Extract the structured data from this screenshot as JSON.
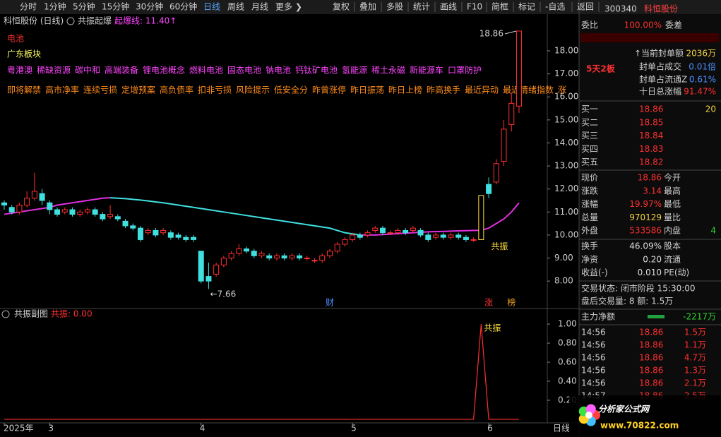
{
  "toolbar": {
    "periods": [
      "分时",
      "1分钟",
      "5分钟",
      "15分钟",
      "30分钟",
      "60分钟",
      "日线",
      "周线",
      "月线",
      "更多 ❯"
    ],
    "selected_period": 6,
    "tools": [
      "复权",
      "叠加",
      "多股",
      "统计",
      "画线",
      "F10",
      "简框",
      "标记",
      "-自选",
      "返回"
    ]
  },
  "main_chart": {
    "type": "candlestick",
    "stock_label": "科恒股份 (日线)",
    "formula": "共振起爆",
    "trigger_label": "起爆线: 11.40↑",
    "sector": "电池",
    "region": "广东板块",
    "concepts": [
      "粤港澳",
      "稀缺资源",
      "碳中和",
      "高端装备",
      "锂电池概念",
      "燃料电池",
      "固态电池",
      "钠电池",
      "钙钛矿电池",
      "氢能源",
      "稀土永磁",
      "新能源车",
      "口罩防护"
    ],
    "flags": [
      "即将解禁",
      "高市净率",
      "连续亏损",
      "定增预案",
      "高负债率",
      "扣非亏损",
      "风险提示",
      "低安全分",
      "昨曾涨停",
      "昨日振荡",
      "昨日上榜",
      "昨高换手",
      "最近异动",
      "最近情绪指数",
      "涨"
    ],
    "ylim": [
      6.87,
      18.92
    ],
    "yticks": [
      {
        "value": 8,
        "label": "8.00"
      },
      {
        "value": 9,
        "label": "9.00"
      },
      {
        "value": 10,
        "label": "10.00"
      },
      {
        "value": 11,
        "label": "11.00"
      },
      {
        "value": 12,
        "label": "12.00"
      },
      {
        "value": 13,
        "label": "13.00"
      },
      {
        "value": 14,
        "label": "14.00"
      },
      {
        "value": 15,
        "label": "15.00"
      },
      {
        "value": 16,
        "label": "16.00"
      },
      {
        "value": 17,
        "label": "17.00"
      },
      {
        "value": 18,
        "label": "18.00"
      }
    ],
    "candles": [
      [
        11.4,
        11.3,
        11.5,
        11.1
      ],
      [
        11.2,
        11.0,
        11.3,
        10.9
      ],
      [
        11.0,
        11.3,
        11.4,
        10.9
      ],
      [
        11.3,
        11.6,
        11.9,
        11.2
      ],
      [
        11.6,
        11.9,
        12.7,
        11.5
      ],
      [
        11.8,
        11.5,
        12.0,
        11.3
      ],
      [
        11.4,
        11.1,
        11.5,
        10.9
      ],
      [
        11.1,
        10.9,
        11.2,
        10.8
      ],
      [
        11.0,
        11.1,
        11.2,
        10.9
      ],
      [
        11.1,
        10.9,
        11.2,
        10.8
      ],
      [
        10.9,
        11.0,
        11.1,
        10.8
      ],
      [
        11.0,
        11.1,
        11.2,
        10.9
      ],
      [
        11.1,
        10.9,
        11.2,
        10.8
      ],
      [
        10.9,
        10.7,
        11.0,
        10.6
      ],
      [
        10.8,
        10.9,
        11.3,
        10.7
      ],
      [
        10.8,
        10.7,
        10.9,
        10.6
      ],
      [
        10.6,
        10.4,
        10.7,
        10.3
      ],
      [
        10.4,
        10.3,
        10.5,
        10.2
      ],
      [
        10.3,
        9.8,
        10.4,
        9.7
      ],
      [
        10.1,
        10.2,
        10.3,
        10.0
      ],
      [
        10.2,
        10.0,
        10.3,
        9.9
      ],
      [
        10.1,
        10.2,
        10.3,
        10.0
      ],
      [
        10.1,
        9.9,
        10.2,
        9.8
      ],
      [
        10.0,
        9.9,
        10.1,
        9.8
      ],
      [
        9.9,
        9.8,
        10.0,
        9.7
      ],
      [
        9.9,
        9.8,
        10.0,
        9.7
      ],
      [
        9.3,
        8.0,
        9.3,
        7.9
      ],
      [
        8.2,
        8.0,
        8.8,
        7.66
      ],
      [
        8.3,
        8.7,
        8.8,
        8.2
      ],
      [
        8.7,
        9.0,
        9.1,
        8.6
      ],
      [
        9.0,
        9.2,
        9.3,
        8.9
      ],
      [
        9.2,
        9.4,
        9.6,
        9.1
      ],
      [
        9.4,
        9.3,
        9.5,
        9.2
      ],
      [
        9.3,
        9.1,
        9.4,
        9.0
      ],
      [
        9.1,
        9.2,
        9.3,
        9.0
      ],
      [
        9.1,
        9.0,
        9.2,
        8.9
      ],
      [
        9.0,
        9.1,
        9.2,
        8.9
      ],
      [
        9.1,
        9.0,
        9.2,
        8.9
      ],
      [
        9.0,
        9.1,
        9.2,
        8.9
      ],
      [
        9.1,
        9.0,
        9.2,
        8.9
      ],
      [
        9.0,
        9.0,
        9.1,
        8.9
      ],
      [
        8.9,
        8.9,
        9.0,
        8.8
      ],
      [
        8.9,
        9.1,
        9.2,
        8.8
      ],
      [
        9.1,
        9.3,
        9.4,
        9.0
      ],
      [
        9.3,
        9.6,
        9.7,
        9.2
      ],
      [
        9.6,
        9.8,
        9.9,
        9.5
      ],
      [
        9.8,
        10.0,
        10.1,
        9.7
      ],
      [
        10.0,
        9.9,
        10.1,
        9.8
      ],
      [
        10.0,
        10.1,
        10.2,
        9.9
      ],
      [
        10.2,
        10.3,
        10.4,
        10.1
      ],
      [
        10.3,
        10.1,
        10.4,
        10.0
      ],
      [
        10.1,
        10.1,
        10.2,
        10.0
      ],
      [
        10.1,
        10.2,
        10.3,
        10.0
      ],
      [
        10.2,
        10.1,
        10.3,
        10.0
      ],
      [
        10.2,
        10.3,
        10.4,
        10.1
      ],
      [
        10.2,
        10.0,
        10.3,
        9.9
      ],
      [
        10.0,
        9.8,
        10.1,
        9.7
      ],
      [
        9.9,
        10.0,
        10.1,
        9.8
      ],
      [
        10.0,
        9.9,
        10.1,
        9.8
      ],
      [
        9.9,
        10.0,
        10.1,
        9.8
      ],
      [
        10.0,
        9.9,
        10.1,
        9.8
      ],
      [
        9.9,
        9.8,
        10.0,
        9.7
      ],
      [
        9.8,
        9.8,
        9.9,
        9.7
      ],
      [
        9.8,
        11.72,
        11.72,
        9.8
      ],
      [
        12.2,
        11.8,
        12.5,
        11.6
      ],
      [
        12.3,
        13.1,
        13.3,
        12.2
      ],
      [
        13.2,
        14.6,
        15.0,
        13.0
      ],
      [
        14.8,
        15.72,
        16.2,
        14.5
      ],
      [
        15.6,
        18.86,
        18.86,
        15.3
      ]
    ],
    "ma": [
      10.9,
      10.95,
      11.0,
      11.05,
      11.1,
      11.15,
      11.2,
      11.3,
      11.35,
      11.4,
      11.45,
      11.5,
      11.55,
      11.6,
      11.62,
      11.6,
      11.58,
      11.55,
      11.52,
      11.48,
      11.44,
      11.4,
      11.35,
      11.3,
      11.25,
      11.2,
      11.15,
      11.1,
      11.05,
      11.0,
      10.95,
      10.9,
      10.85,
      10.8,
      10.75,
      10.7,
      10.65,
      10.6,
      10.55,
      10.5,
      10.45,
      10.4,
      10.35,
      10.3,
      10.2,
      10.1,
      10.05,
      10.0,
      10.0,
      10.0,
      10.02,
      10.04,
      10.06,
      10.08,
      10.1,
      10.12,
      10.14,
      10.15,
      10.16,
      10.17,
      10.18,
      10.19,
      10.2,
      10.2,
      10.3,
      10.5,
      10.7,
      11.0,
      11.4
    ],
    "dates": [
      "2025年",
      null,
      null,
      null,
      null,
      null,
      "3",
      null,
      null,
      null,
      null,
      null,
      null,
      null,
      null,
      null,
      null,
      null,
      null,
      null,
      null,
      null,
      null,
      null,
      null,
      null,
      "4",
      null,
      null,
      null,
      null,
      null,
      null,
      null,
      null,
      null,
      null,
      null,
      null,
      null,
      null,
      null,
      null,
      null,
      null,
      null,
      "5",
      null,
      null,
      null,
      null,
      null,
      null,
      null,
      null,
      null,
      null,
      null,
      null,
      null,
      null,
      null,
      null,
      null,
      "6",
      null,
      null,
      null,
      null
    ],
    "high_label": {
      "index": 68,
      "label": "18.86"
    },
    "low_label": {
      "index": 27,
      "label": "←7.66"
    },
    "signal_label": "共振",
    "event_markers": [
      {
        "index": 43,
        "label": "财",
        "color": "#4a90ff"
      },
      {
        "index": 64,
        "label": "涨",
        "color": "#ff3030"
      },
      {
        "index": 67,
        "label": "榜",
        "color": "#e8a020"
      }
    ]
  },
  "sub_chart": {
    "type": "line",
    "title": "共振副图",
    "value_label": "共振: 0.00",
    "color": "#ff3030",
    "ylim": [
      -0.03,
      1.03
    ],
    "yticks": [
      {
        "value": 1,
        "label": "1.00"
      },
      {
        "value": 0.8,
        "label": "0.80"
      },
      {
        "value": 0.6,
        "label": "0.60"
      },
      {
        "value": 0.4,
        "label": "0.40"
      },
      {
        "value": 0.2,
        "label": "0.20"
      }
    ],
    "values": [
      0,
      0,
      0,
      0,
      0,
      0,
      0,
      0,
      0,
      0,
      0,
      0,
      0,
      0,
      0,
      0,
      0,
      0,
      0,
      0,
      0,
      0,
      0,
      0,
      0,
      0,
      0,
      0,
      0,
      0,
      0,
      0,
      0,
      0,
      0,
      0,
      0,
      0,
      0,
      0,
      0,
      0,
      0,
      0,
      0,
      0,
      0,
      0,
      0,
      0,
      0,
      0,
      0,
      0,
      0,
      0,
      0,
      0,
      0,
      0,
      0,
      0,
      0,
      1,
      0,
      0,
      0,
      0,
      0
    ],
    "peak_label": "共振",
    "period_label": "日线"
  },
  "quote": {
    "code": "300340",
    "name": "科恒股份",
    "ratio_label": "委比",
    "ratio": "100.00%",
    "diff_label": "委差",
    "seal_amount_label": "↑当前封单额",
    "seal_amount": "2036万",
    "board": "5天2板",
    "seal_turnover_label": "封单占成交",
    "seal_turnover": "0.01倍",
    "seal_float_label": "封单占流通Z",
    "seal_float": "0.61%",
    "ten_day_label": "十日总涨幅",
    "ten_day": "91.47%",
    "bids": [
      {
        "label": "买一",
        "price": 18.86,
        "volume": 20
      },
      {
        "label": "买二",
        "price": 18.85
      },
      {
        "label": "买三",
        "price": 18.84
      },
      {
        "label": "买四",
        "price": 18.83
      },
      {
        "label": "买五",
        "price": 18.82
      }
    ],
    "stats": [
      {
        "label": "现价",
        "value": "18.86",
        "label2": "今开",
        "color": "#ff3030"
      },
      {
        "label": "涨跌",
        "value": "3.14",
        "label2": "最高",
        "color": "#ff3030"
      },
      {
        "label": "涨幅",
        "value": "19.97%",
        "label2": "最低",
        "color": "#ff3030"
      },
      {
        "label": "总量",
        "value": "970129",
        "label2": "量比",
        "color": "#f0d040"
      },
      {
        "label": "外盘",
        "value": "533586",
        "label2": "内盘",
        "value2": "4",
        "color": "#ff3030"
      }
    ],
    "stats2": [
      {
        "label": "换手",
        "value": "46.09%",
        "label2": "股本",
        "color": "#dddddd"
      },
      {
        "label": "净资",
        "value": "0.20",
        "label2": "流通",
        "color": "#dddddd"
      },
      {
        "label": "收益(-)",
        "value": "0.010",
        "label2": "PE(动)",
        "color": "#dddddd"
      }
    ],
    "status": "交易状态: 闭市阶段 15:30:00",
    "after_hours": "盘后交易量: 8 额: 1.5万",
    "main_flow_label": "主力净额",
    "main_flow": "-2217万",
    "trades": [
      {
        "time": "14:56",
        "price": 18.86,
        "volume": "1.5万"
      },
      {
        "time": "14:56",
        "price": 18.86,
        "volume": "1.1万"
      },
      {
        "time": "14:56",
        "price": 18.86,
        "volume": "4.7万"
      },
      {
        "time": "14:56",
        "price": 18.86,
        "volume": "1.3万"
      },
      {
        "time": "14:56",
        "price": 18.86,
        "volume": "2.1万"
      },
      {
        "time": "14:57",
        "price": 18.86,
        "volume": "2.5万"
      }
    ]
  },
  "watermark": {
    "title": "分析家公式网",
    "url": "www.70822.com"
  }
}
